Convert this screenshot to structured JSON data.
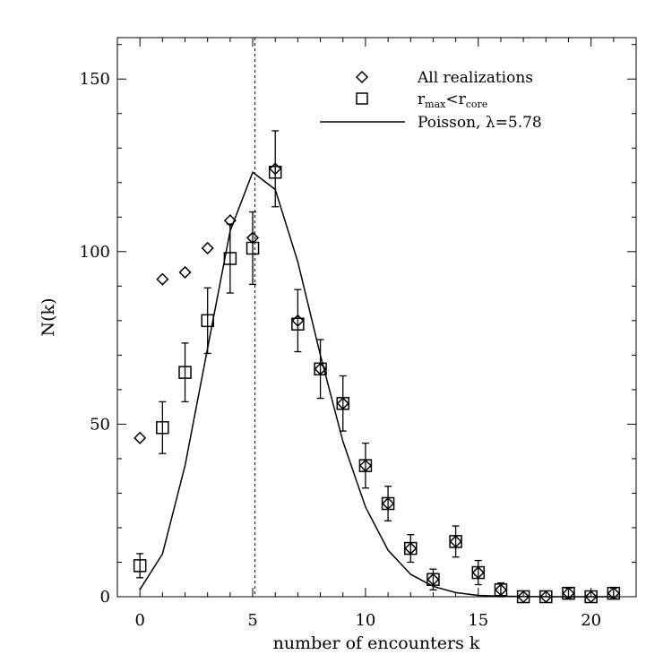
{
  "chart_data": {
    "type": "scatter",
    "xlabel": "number of encounters k",
    "ylabel": "N(k)",
    "xlim": [
      -1,
      22
    ],
    "ylim": [
      0,
      162
    ],
    "xticks": [
      0,
      5,
      10,
      15,
      20
    ],
    "yticks": [
      0,
      50,
      100,
      150
    ],
    "grid": false,
    "legend_position": "top-right",
    "vline_x": 5.1,
    "legend": {
      "all": "All realizations",
      "rmax_r": "r",
      "rmax_sub": "max",
      "rmax_lt": "<r",
      "rmax_core_sub": "core",
      "poisson": "Poisson, λ=5.78"
    },
    "series": [
      {
        "name": "All realizations",
        "marker": "diamond",
        "x": [
          0,
          1,
          2,
          3,
          4,
          5,
          6,
          7,
          8,
          9,
          10,
          11,
          12,
          13,
          14,
          15,
          16,
          17,
          18,
          19,
          20,
          21
        ],
        "y": [
          46,
          92,
          94,
          101,
          109,
          104,
          124,
          80,
          66,
          56,
          38,
          27,
          14,
          5,
          16,
          7,
          2,
          0,
          0,
          1,
          0,
          1
        ],
        "yerr": [
          null,
          null,
          null,
          null,
          null,
          null,
          11,
          9,
          8.5,
          8,
          6.5,
          5,
          4,
          3,
          4.5,
          3.5,
          2,
          null,
          null,
          1.5,
          null,
          1.5
        ]
      },
      {
        "name": "rmax<rcore",
        "marker": "square",
        "x": [
          0,
          1,
          2,
          3,
          4,
          5,
          6,
          7,
          8,
          9,
          10,
          11,
          12,
          13,
          14,
          15,
          16,
          17,
          18,
          19,
          20,
          21
        ],
        "y": [
          9,
          49,
          65,
          80,
          98,
          101,
          123,
          79,
          66,
          56,
          38,
          27,
          14,
          5,
          16,
          7,
          2,
          0,
          0,
          1,
          0,
          1
        ],
        "yerr": [
          3.5,
          7.5,
          8.5,
          9.5,
          10,
          10.5,
          null,
          null,
          null,
          null,
          null,
          null,
          null,
          null,
          null,
          null,
          null,
          null,
          null,
          null,
          null,
          null
        ]
      },
      {
        "name": "Poisson, λ=5.78",
        "marker": "line",
        "x": [
          0,
          1,
          2,
          3,
          4,
          5,
          6,
          7,
          8,
          9,
          10,
          11,
          12,
          13,
          14,
          15,
          16,
          17,
          18,
          19,
          20,
          21
        ],
        "y": [
          2.1,
          12.4,
          38,
          72,
          106,
          123,
          118,
          97,
          70,
          45,
          26,
          13.5,
          6.5,
          3,
          1.2,
          0.4,
          0.15,
          0.05,
          0,
          0,
          0,
          0
        ]
      }
    ]
  }
}
